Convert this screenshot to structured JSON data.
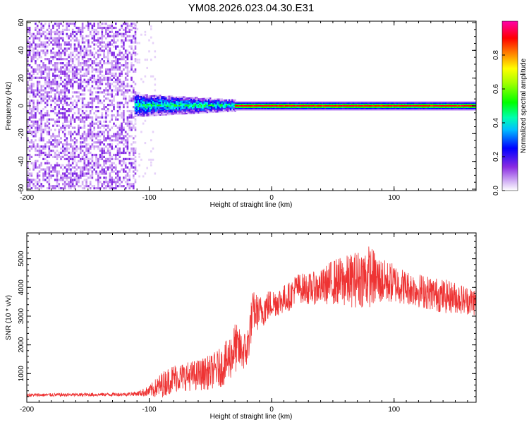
{
  "chart_data": [
    {
      "type": "heatmap",
      "title": "YM08.2026.023.04.30.E31",
      "xlabel": "Height of straight line (km)",
      "ylabel": "Frequency (Hz)",
      "xlim": [
        -200,
        167
      ],
      "ylim": [
        -61,
        61
      ],
      "xticks": [
        -200,
        -100,
        0,
        100
      ],
      "xtick_labels": [
        "-200",
        "-100",
        "0",
        "100"
      ],
      "yticks": [
        -60,
        -40,
        -20,
        0,
        20,
        40,
        60
      ],
      "ytick_labels": [
        "-60",
        "-40",
        "-20",
        "0",
        "20",
        "40",
        "60"
      ],
      "colorbar": {
        "label": "Normalized spectral amplitude",
        "range": [
          0,
          1
        ],
        "ticks": [
          0.0,
          0.2,
          0.4,
          0.6,
          0.8
        ],
        "tick_labels": [
          "0.0",
          "0.2",
          "0.4",
          "0.6",
          "0.8"
        ],
        "colormap": [
          "#ffffff",
          "#8a2be2",
          "#0000ff",
          "#00ffff",
          "#00ff00",
          "#ffff00",
          "#ff0000",
          "#ff00aa"
        ]
      },
      "regions": [
        {
          "name": "noise",
          "x_range": [
            -200,
            -112
          ],
          "freq_range": [
            -60,
            60
          ],
          "amplitude": 0.1
        },
        {
          "name": "transition",
          "x_range": [
            -112,
            -30
          ],
          "freq_range": [
            -8,
            8
          ],
          "amplitude": 0.35
        },
        {
          "name": "carrier",
          "x_range": [
            -25,
            167
          ],
          "freq_range": [
            -3,
            3
          ],
          "center_freq": 0,
          "amplitude": 0.9
        }
      ]
    },
    {
      "type": "line",
      "xlabel": "Height of straight line (km)",
      "ylabel": "SNR (10 * v/v)",
      "xlim": [
        -200,
        167
      ],
      "ylim": [
        0,
        5900
      ],
      "xticks": [
        -200,
        -100,
        0,
        100
      ],
      "xtick_labels": [
        "-200",
        "-100",
        "0",
        "100"
      ],
      "yticks": [
        1000,
        2000,
        3000,
        4000,
        5000
      ],
      "ytick_labels": [
        "1000",
        "2000",
        "3000",
        "4000",
        "5000"
      ],
      "series": [
        {
          "name": "SNR",
          "color": "#ee3333",
          "x": [
            -200,
            -180,
            -160,
            -140,
            -120,
            -110,
            -100,
            -90,
            -80,
            -70,
            -60,
            -50,
            -40,
            -35,
            -30,
            -25,
            -20,
            -18,
            -15,
            -10,
            -5,
            0,
            5,
            10,
            15,
            20,
            30,
            40,
            50,
            60,
            70,
            80,
            90,
            100,
            110,
            120,
            130,
            140,
            150,
            160,
            167
          ],
          "values": [
            250,
            260,
            260,
            270,
            280,
            300,
            380,
            600,
            850,
            900,
            950,
            1050,
            1250,
            1500,
            1900,
            1800,
            1800,
            2500,
            3200,
            3100,
            3300,
            3450,
            3500,
            3600,
            3700,
            4000,
            3950,
            4000,
            4200,
            4200,
            4300,
            4400,
            4200,
            4150,
            4000,
            3900,
            3800,
            3700,
            3650,
            3550,
            3500
          ],
          "noise_amplitude": [
            60,
            60,
            60,
            60,
            60,
            80,
            200,
            450,
            500,
            500,
            550,
            600,
            700,
            800,
            900,
            700,
            700,
            800,
            700,
            600,
            600,
            500,
            500,
            500,
            500,
            500,
            550,
            600,
            800,
            900,
            1000,
            1100,
            800,
            700,
            600,
            600,
            600,
            600,
            550,
            500,
            500
          ]
        }
      ]
    }
  ]
}
